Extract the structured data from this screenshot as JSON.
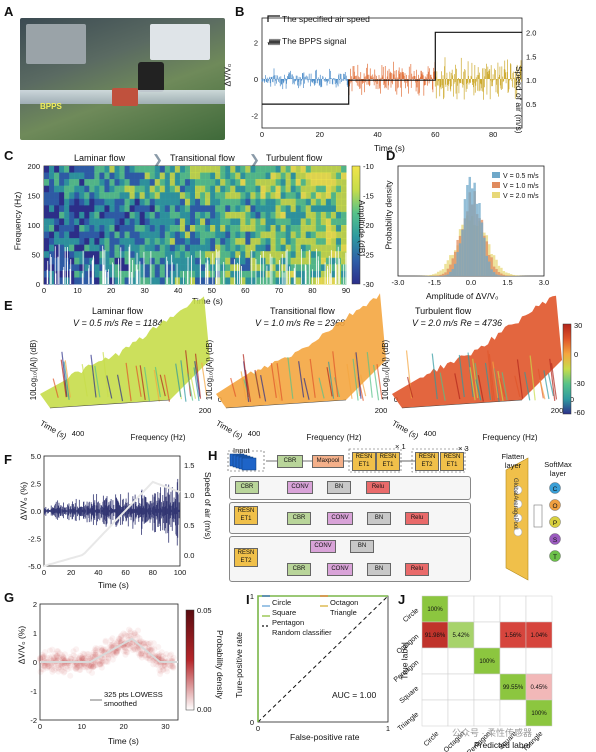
{
  "panels": {
    "A": {
      "letter": "A",
      "bpps_label": "BPPS"
    },
    "B": {
      "letter": "B",
      "legend": [
        "The specified air speed",
        "The BPPS signal"
      ],
      "xlabel": "Time (s)",
      "ylabel_left": "ΔV/V₀",
      "ylabel_right": "Speed of air (m/s)",
      "xticks": [
        "0",
        "20",
        "40",
        "60",
        "80"
      ],
      "yticks_left": [
        "2",
        "0",
        "-2"
      ],
      "yticks_right": [
        "2.0",
        "1.5",
        "1.0",
        "0.5"
      ]
    },
    "C": {
      "letter": "C",
      "stages": [
        "Laminar flow",
        "Transitional flow",
        "Turbulent flow"
      ],
      "xlabel": "Time (s)",
      "ylabel": "Frequency (Hz)",
      "xticks": [
        "0",
        "10",
        "20",
        "30",
        "40",
        "50",
        "60",
        "70",
        "80",
        "90"
      ],
      "yticks": [
        "200",
        "150",
        "100",
        "50",
        "0"
      ],
      "colorbar_label": "Amplitude (dB)",
      "colorbar_ticks": [
        "-10",
        "-15",
        "-20",
        "-25",
        "-30"
      ]
    },
    "D": {
      "letter": "D",
      "ylabel": "Probability density",
      "xlabel": "Amplitude of ΔV/V₀",
      "legend": [
        "V = 0.5 m/s",
        "V = 1.0 m/s",
        "V = 2.0 m/s"
      ],
      "xticks": [
        "-3.0",
        "-1.5",
        "0.0",
        "1.5",
        "3.0"
      ]
    },
    "E": {
      "letter": "E",
      "subplots": [
        {
          "title": "Laminar flow",
          "subtitle": "V = 0.5 m/s Re = 1184"
        },
        {
          "title": "Transitional flow",
          "subtitle": "V = 1.0 m/s Re = 2368"
        },
        {
          "title": "Turbulent flow",
          "subtitle": "V = 2.0 m/s Re = 4736"
        }
      ],
      "zlabel": "10Log₁₀(|A|) (dB)",
      "ylabel": "Time (s)",
      "xlabel": "Frequency (Hz)",
      "tick_400": "400",
      "tick_200": "200",
      "tick_0": "0",
      "colorbar_ticks": [
        "30",
        "0",
        "-30",
        "-60"
      ]
    },
    "F": {
      "letter": "F",
      "xlabel": "Time (s)",
      "ylabel_left": "ΔV/V₀ (%)",
      "ylabel_right": "Speed of air (m/s)",
      "xticks": [
        "0",
        "20",
        "40",
        "60",
        "80",
        "100"
      ],
      "yticks_left": [
        "5.0",
        "2.5",
        "0.0",
        "-2.5",
        "-5.0"
      ],
      "yticks_right": [
        "1.5",
        "1.0",
        "0.5",
        "0.0"
      ]
    },
    "G": {
      "letter": "G",
      "xlabel": "Time (s)",
      "ylabel": "ΔV/V₀ (%)",
      "colorbar_label": "Probability density",
      "colorbar_ticks": [
        "0.05",
        "0.00"
      ],
      "legend": "325 pts LOWESS smoothed",
      "xticks": [
        "0",
        "10",
        "20",
        "30"
      ],
      "yticks": [
        "2",
        "1",
        "0",
        "-1",
        "-2"
      ]
    },
    "H": {
      "letter": "H",
      "input_label": "Input",
      "blocks": {
        "cbr": "CBR",
        "maxpool": "Maxpool",
        "resnet1": "RESN ET1",
        "resnet2": "RESN ET2",
        "conv": "CONV",
        "bn": "BN",
        "relu": "Relu",
        "gap": "GlobalAveragePool"
      },
      "x1": "× 1",
      "x3": "× 3",
      "flatten": "Flatten layer",
      "softmax": "SoftMax layer",
      "outputs": [
        "C",
        "O",
        "P",
        "S",
        "T"
      ]
    },
    "I": {
      "letter": "I",
      "xlabel": "False-positive rate",
      "ylabel": "Ture-positive rate",
      "legend": [
        "Circle",
        "Octagon",
        "Square",
        "Triangle",
        "Pentagon",
        "Random classifier"
      ],
      "auc": "AUC = 1.00",
      "ticks": [
        "0",
        "1"
      ]
    },
    "J": {
      "letter": "J",
      "xlabel": "Predicted label",
      "ylabel": "True label",
      "classes": [
        "Circle",
        "Octagon",
        "Pentagon",
        "Square",
        "Triangle"
      ],
      "cells": {
        "c00": "100%",
        "c10": "91.98%",
        "c11": "5.42%",
        "c13": "1.56%",
        "c14": "1.04%",
        "c22": "100%",
        "c33": "99.55%",
        "c34": "0.45%",
        "c44": "100%"
      }
    }
  },
  "watermark": "公众号 · 柔性传感器",
  "chart_data": [
    {
      "type": "line",
      "title": "",
      "xlabel": "Time (s)",
      "ylabel": "Speed of air (m/s)",
      "series": [
        {
          "name": "The specified air speed",
          "x": [
            0,
            30,
            30,
            60,
            60,
            90
          ],
          "values": [
            0.5,
            0.5,
            1.0,
            1.0,
            2.0,
            2.0
          ]
        }
      ],
      "xlim": [
        0,
        90
      ],
      "ylim": [
        0,
        2.2
      ]
    },
    {
      "type": "bar",
      "title": "",
      "xlabel": "Amplitude of ΔV/V₀",
      "ylabel": "Probability density",
      "series": [
        {
          "name": "V = 0.5 m/s",
          "x": [
            -1.5,
            -0.75,
            0,
            0.75,
            1.5
          ],
          "values": [
            0.05,
            0.35,
            1.0,
            0.35,
            0.05
          ]
        },
        {
          "name": "V = 1.0 m/s",
          "x": [
            -1.5,
            -0.75,
            0,
            0.75,
            1.5
          ],
          "values": [
            0.08,
            0.4,
            0.85,
            0.4,
            0.08
          ]
        },
        {
          "name": "V = 2.0 m/s",
          "x": [
            -1.5,
            -0.75,
            0,
            0.75,
            1.5
          ],
          "values": [
            0.12,
            0.45,
            0.7,
            0.45,
            0.12
          ]
        }
      ],
      "xlim": [
        -3.0,
        3.0
      ]
    },
    {
      "type": "table",
      "title": "",
      "xlabel": "Predicted label",
      "ylabel": "True label",
      "rows": [
        "Circle",
        "Octagon",
        "Pentagon",
        "Square",
        "Triangle"
      ],
      "columns": [
        "Circle",
        "Octagon",
        "Pentagon",
        "Square",
        "Triangle"
      ],
      "values": [
        [
          100,
          0,
          0,
          0,
          0
        ],
        [
          91.98,
          5.42,
          0,
          1.56,
          1.04
        ],
        [
          0,
          0,
          100,
          0,
          0
        ],
        [
          0,
          0,
          0,
          99.55,
          0.45
        ],
        [
          0,
          0,
          0,
          0,
          100
        ]
      ]
    },
    {
      "type": "line",
      "title": "",
      "xlabel": "False-positive rate",
      "ylabel": "Ture-positive rate",
      "series": [
        {
          "name": "Random classifier",
          "x": [
            0,
            1
          ],
          "values": [
            0,
            1
          ]
        }
      ],
      "xlim": [
        0,
        1
      ],
      "ylim": [
        0,
        1
      ]
    }
  ]
}
